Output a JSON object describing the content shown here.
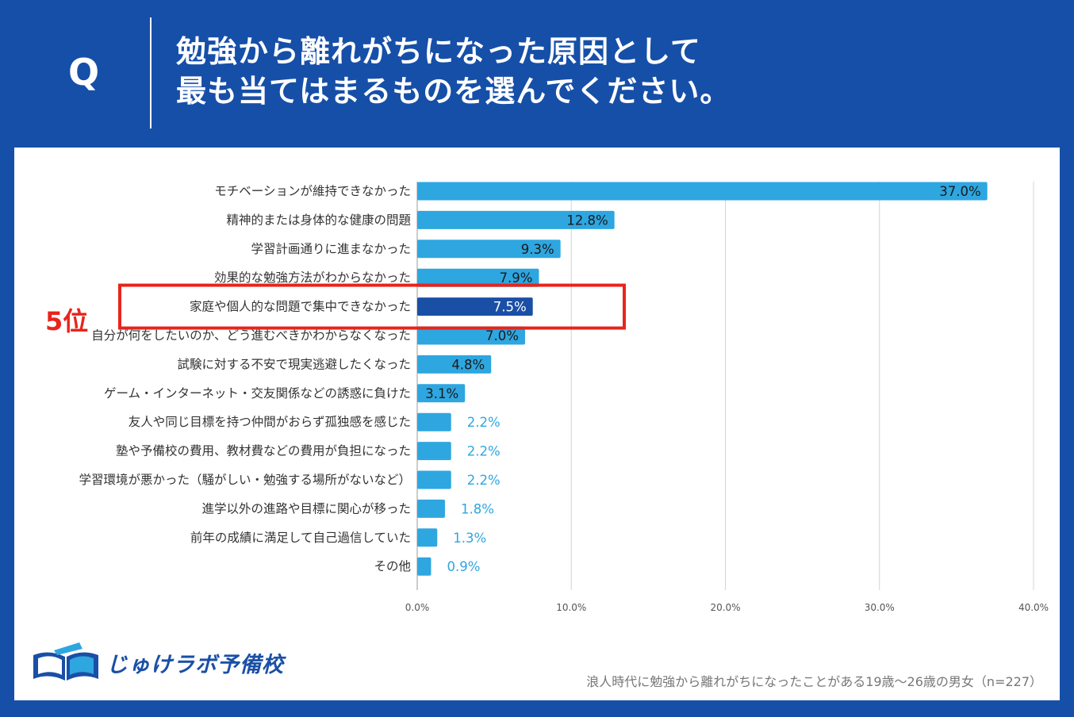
{
  "header": {
    "q_letter": "Q",
    "title_line1": "勉強から離れがちになった原因として",
    "title_line2": "最も当てはまるものを選んでください。"
  },
  "rank_label": "5位",
  "logo": {
    "icon": "open-book-icon",
    "text": "じゅけラボ予備校"
  },
  "footnote": "浪人時代に勉強から離れがちになったことがある19歳〜26歳の男女（n=227）",
  "colors": {
    "background": "#164fa8",
    "bar": "#2ea6e0",
    "highlight_bar": "#1a4fa6",
    "highlight_box": "#e8241b",
    "outside_label": "#2ea6e0"
  },
  "chart_data": {
    "type": "bar",
    "orientation": "horizontal",
    "categories": [
      "モチベーションが維持できなかった",
      "精神的または身体的な健康の問題",
      "学習計画通りに進まなかった",
      "効果的な勉強方法がわからなかった",
      "家庭や個人的な問題で集中できなかった",
      "自分が何をしたいのか、どう進むべきかわからなくなった",
      "試験に対する不安で現実逃避したくなった",
      "ゲーム・インターネット・交友関係などの誘惑に負けた",
      "友人や同じ目標を持つ仲間がおらず孤独感を感じた",
      "塾や予備校の費用、教材費などの費用が負担になった",
      "学習環境が悪かった（騒がしい・勉強する場所がないなど）",
      "進学以外の進路や目標に関心が移った",
      "前年の成績に満足して自己過信していた",
      "その他"
    ],
    "values": [
      37.0,
      12.8,
      9.3,
      7.9,
      7.5,
      7.0,
      4.8,
      3.1,
      2.2,
      2.2,
      2.2,
      1.8,
      1.3,
      0.9
    ],
    "labels": [
      "37.0%",
      "12.8%",
      "9.3%",
      "7.9%",
      "7.5%",
      "7.0%",
      "4.8%",
      "3.1%",
      "2.2%",
      "2.2%",
      "2.2%",
      "1.8%",
      "1.3%",
      "0.9%"
    ],
    "highlight_index": 4,
    "xlim": [
      0,
      40
    ],
    "xticks": [
      0,
      10,
      20,
      30,
      40
    ],
    "xtick_labels": [
      "0.0%",
      "10.0%",
      "20.0%",
      "30.0%",
      "40.0%"
    ],
    "grid": true
  }
}
